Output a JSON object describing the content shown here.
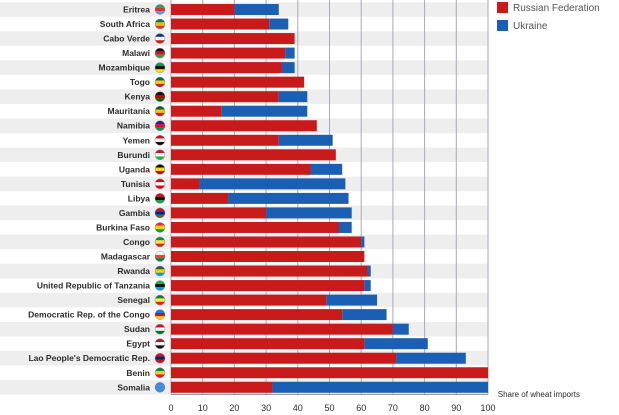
{
  "chart_data": {
    "type": "bar",
    "stacked": true,
    "orientation": "horizontal",
    "title": "",
    "xlabel": "Share of wheat imports",
    "ylabel": "",
    "xlim": [
      0,
      100
    ],
    "xticks": [
      0,
      10,
      20,
      30,
      40,
      50,
      60,
      70,
      80,
      90,
      100
    ],
    "grid": true,
    "legend_position": "top-right",
    "categories": [
      "Eritrea",
      "South Africa",
      "Cabo Verde",
      "Malawi",
      "Mozambique",
      "Togo",
      "Kenya",
      "Mauritania",
      "Namibia",
      "Yemen",
      "Burundi",
      "Uganda",
      "Tunisia",
      "Libya",
      "Gambia",
      "Burkina Faso",
      "Congo",
      "Madagascar",
      "Rwanda",
      "United Republic of Tanzania",
      "Senegal",
      "Democratic Rep. of the Congo",
      "Sudan",
      "Egypt",
      "Lao People's Democratic Rep.",
      "Benin",
      "Somalia"
    ],
    "series": [
      {
        "name": "Russian Federation",
        "color": "#c8191b",
        "values": [
          20,
          31,
          39,
          36,
          35,
          42,
          34,
          16,
          46,
          34,
          52,
          44,
          9,
          18,
          30,
          53,
          60,
          61,
          62,
          61,
          49,
          54,
          70,
          61,
          71,
          100,
          32
        ]
      },
      {
        "name": "Ukraine",
        "color": "#1a5fb4",
        "values": [
          14,
          6,
          0,
          3,
          4,
          0,
          9,
          27,
          0,
          17,
          0,
          10,
          46,
          38,
          27,
          4,
          1,
          0,
          1,
          2,
          16,
          14,
          5,
          20,
          22,
          0,
          68
        ]
      }
    ]
  },
  "flags": [
    {
      "c1": "#12a84d",
      "c2": "#e52c2c",
      "c3": "#4aa3df"
    },
    {
      "c1": "#007a4d",
      "c2": "#ffb612",
      "c3": "#de3831"
    },
    {
      "c1": "#003893",
      "c2": "#ffffff",
      "c3": "#cf2027"
    },
    {
      "c1": "#111111",
      "c2": "#ce1126",
      "c3": "#339e35"
    },
    {
      "c1": "#009a49",
      "c2": "#111111",
      "c3": "#fce100"
    },
    {
      "c1": "#006a4e",
      "c2": "#ffce00",
      "c3": "#d21034"
    },
    {
      "c1": "#111111",
      "c2": "#bb0000",
      "c3": "#006600"
    },
    {
      "c1": "#006233",
      "c2": "#ffc400",
      "c3": "#d01c1f"
    },
    {
      "c1": "#003580",
      "c2": "#d21034",
      "c3": "#009543"
    },
    {
      "c1": "#ce1126",
      "c2": "#ffffff",
      "c3": "#111111"
    },
    {
      "c1": "#ce1126",
      "c2": "#ffffff",
      "c3": "#1eb53a"
    },
    {
      "c1": "#111111",
      "c2": "#fcdc04",
      "c3": "#d90000"
    },
    {
      "c1": "#e70013",
      "c2": "#ffffff",
      "c3": "#e70013"
    },
    {
      "c1": "#e70013",
      "c2": "#111111",
      "c3": "#239e46"
    },
    {
      "c1": "#ce1126",
      "c2": "#0c1c8c",
      "c3": "#3a7728"
    },
    {
      "c1": "#ef2b2d",
      "c2": "#fcd116",
      "c3": "#009e49"
    },
    {
      "c1": "#009543",
      "c2": "#fbde4a",
      "c3": "#dc241f"
    },
    {
      "c1": "#ffffff",
      "c2": "#fc3d32",
      "c3": "#007e3a"
    },
    {
      "c1": "#20603d",
      "c2": "#fad201",
      "c3": "#00a1de"
    },
    {
      "c1": "#1eb53a",
      "c2": "#111111",
      "c3": "#00a3dd"
    },
    {
      "c1": "#00853f",
      "c2": "#fdef42",
      "c3": "#e31b23"
    },
    {
      "c1": "#007fff",
      "c2": "#ce1021",
      "c3": "#f7d618"
    },
    {
      "c1": "#d21034",
      "c2": "#ffffff",
      "c3": "#007229"
    },
    {
      "c1": "#ce1126",
      "c2": "#ffffff",
      "c3": "#111111"
    },
    {
      "c1": "#ce1126",
      "c2": "#002868",
      "c3": "#ce1126"
    },
    {
      "c1": "#008751",
      "c2": "#fcd116",
      "c3": "#e8112d"
    },
    {
      "c1": "#4189dd",
      "c2": "#4189dd",
      "c3": "#4189dd"
    }
  ],
  "colors": {
    "grid": "#a9a9b8",
    "axis": "#9a9a9a",
    "row_band": "#eeeeee"
  }
}
